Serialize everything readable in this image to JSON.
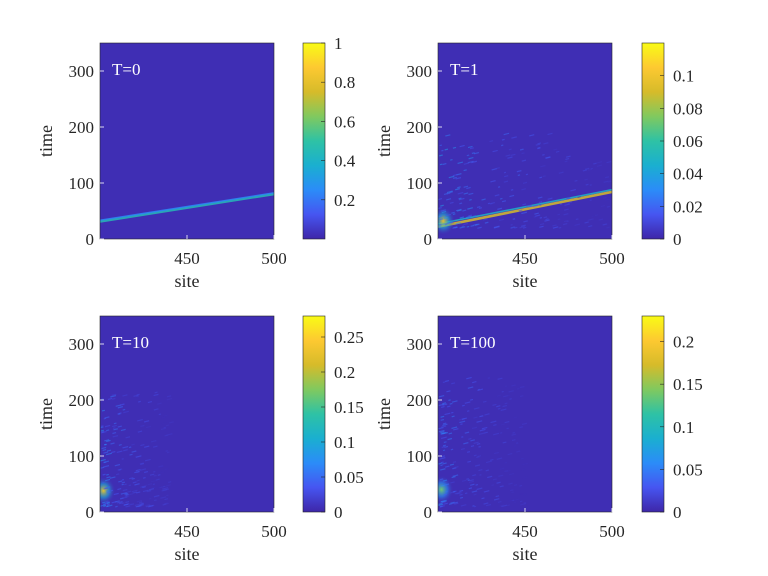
{
  "colors": {
    "background": "#ffffff",
    "axis": "#262626",
    "annotation_text": "#ffffff",
    "colormap": "parula",
    "colormap_stops": [
      "#3e26a8",
      "#4655f1",
      "#2b8cf8",
      "#1aafd0",
      "#2ec2a5",
      "#80c95f",
      "#d6bb2a",
      "#fdc931",
      "#f9fb15"
    ]
  },
  "chart_data": [
    {
      "type": "heatmap",
      "annotation": "T=0",
      "xlabel": "site",
      "ylabel": "time",
      "xlim": [
        400,
        500
      ],
      "ylim": [
        0,
        350
      ],
      "xticks": [
        "450",
        "500"
      ],
      "yticks": [
        "0",
        "100",
        "200",
        "300"
      ],
      "colorbar": {
        "range": [
          0,
          1
        ],
        "ticks": [
          "0.2",
          "0.4",
          "0.6",
          "0.8",
          "1"
        ]
      },
      "features": [
        {
          "kind": "line",
          "from": [
            400,
            31
          ],
          "to": [
            500,
            80
          ],
          "intensity": 0.45,
          "width": 2.2
        },
        {
          "kind": "line",
          "from": [
            400,
            33.5
          ],
          "to": [
            500,
            82.5
          ],
          "intensity": 0.25,
          "width": 1.4
        }
      ]
    },
    {
      "type": "heatmap",
      "annotation": "T=1",
      "xlabel": "site",
      "ylabel": "time",
      "xlim": [
        400,
        500
      ],
      "ylim": [
        0,
        350
      ],
      "xticks": [
        "450",
        "500"
      ],
      "yticks": [
        "0",
        "100",
        "200",
        "300"
      ],
      "colorbar": {
        "range": [
          0,
          0.12
        ],
        "ticks": [
          "0",
          "0.02",
          "0.04",
          "0.06",
          "0.08",
          "0.1"
        ]
      },
      "features": [
        {
          "kind": "line",
          "from": [
            400,
            22
          ],
          "to": [
            500,
            84
          ],
          "intensity": 0.75,
          "width": 2.6
        },
        {
          "kind": "line",
          "from": [
            400,
            27
          ],
          "to": [
            500,
            88
          ],
          "intensity": 0.4,
          "width": 1.6
        },
        {
          "kind": "glow",
          "center": [
            403,
            32
          ],
          "intensity": 0.8
        },
        {
          "kind": "scatter",
          "region": [
            [
              400,
              20
            ],
            [
              500,
              190
            ]
          ],
          "intensity": 0.22
        }
      ]
    },
    {
      "type": "heatmap",
      "annotation": "T=10",
      "xlabel": "site",
      "ylabel": "time",
      "xlim": [
        400,
        500
      ],
      "ylim": [
        0,
        350
      ],
      "xticks": [
        "450",
        "500"
      ],
      "yticks": [
        "0",
        "100",
        "200",
        "300"
      ],
      "colorbar": {
        "range": [
          0,
          0.28
        ],
        "ticks": [
          "0",
          "0.05",
          "0.1",
          "0.15",
          "0.2",
          "0.25"
        ]
      },
      "features": [
        {
          "kind": "glow",
          "center": [
            402,
            38
          ],
          "intensity": 0.8
        },
        {
          "kind": "scatter",
          "region": [
            [
              400,
              10
            ],
            [
              440,
              220
            ]
          ],
          "intensity": 0.2
        }
      ]
    },
    {
      "type": "heatmap",
      "annotation": "T=100",
      "xlabel": "site",
      "ylabel": "time",
      "xlim": [
        400,
        500
      ],
      "ylim": [
        0,
        350
      ],
      "xticks": [
        "450",
        "500"
      ],
      "yticks": [
        "0",
        "100",
        "200",
        "300"
      ],
      "colorbar": {
        "range": [
          0,
          0.23
        ],
        "ticks": [
          "0",
          "0.05",
          "0.1",
          "0.15",
          "0.2"
        ]
      },
      "features": [
        {
          "kind": "glow",
          "center": [
            402,
            40
          ],
          "intensity": 0.6
        },
        {
          "kind": "scatter",
          "region": [
            [
              400,
              10
            ],
            [
              450,
              240
            ]
          ],
          "intensity": 0.18
        }
      ]
    }
  ]
}
